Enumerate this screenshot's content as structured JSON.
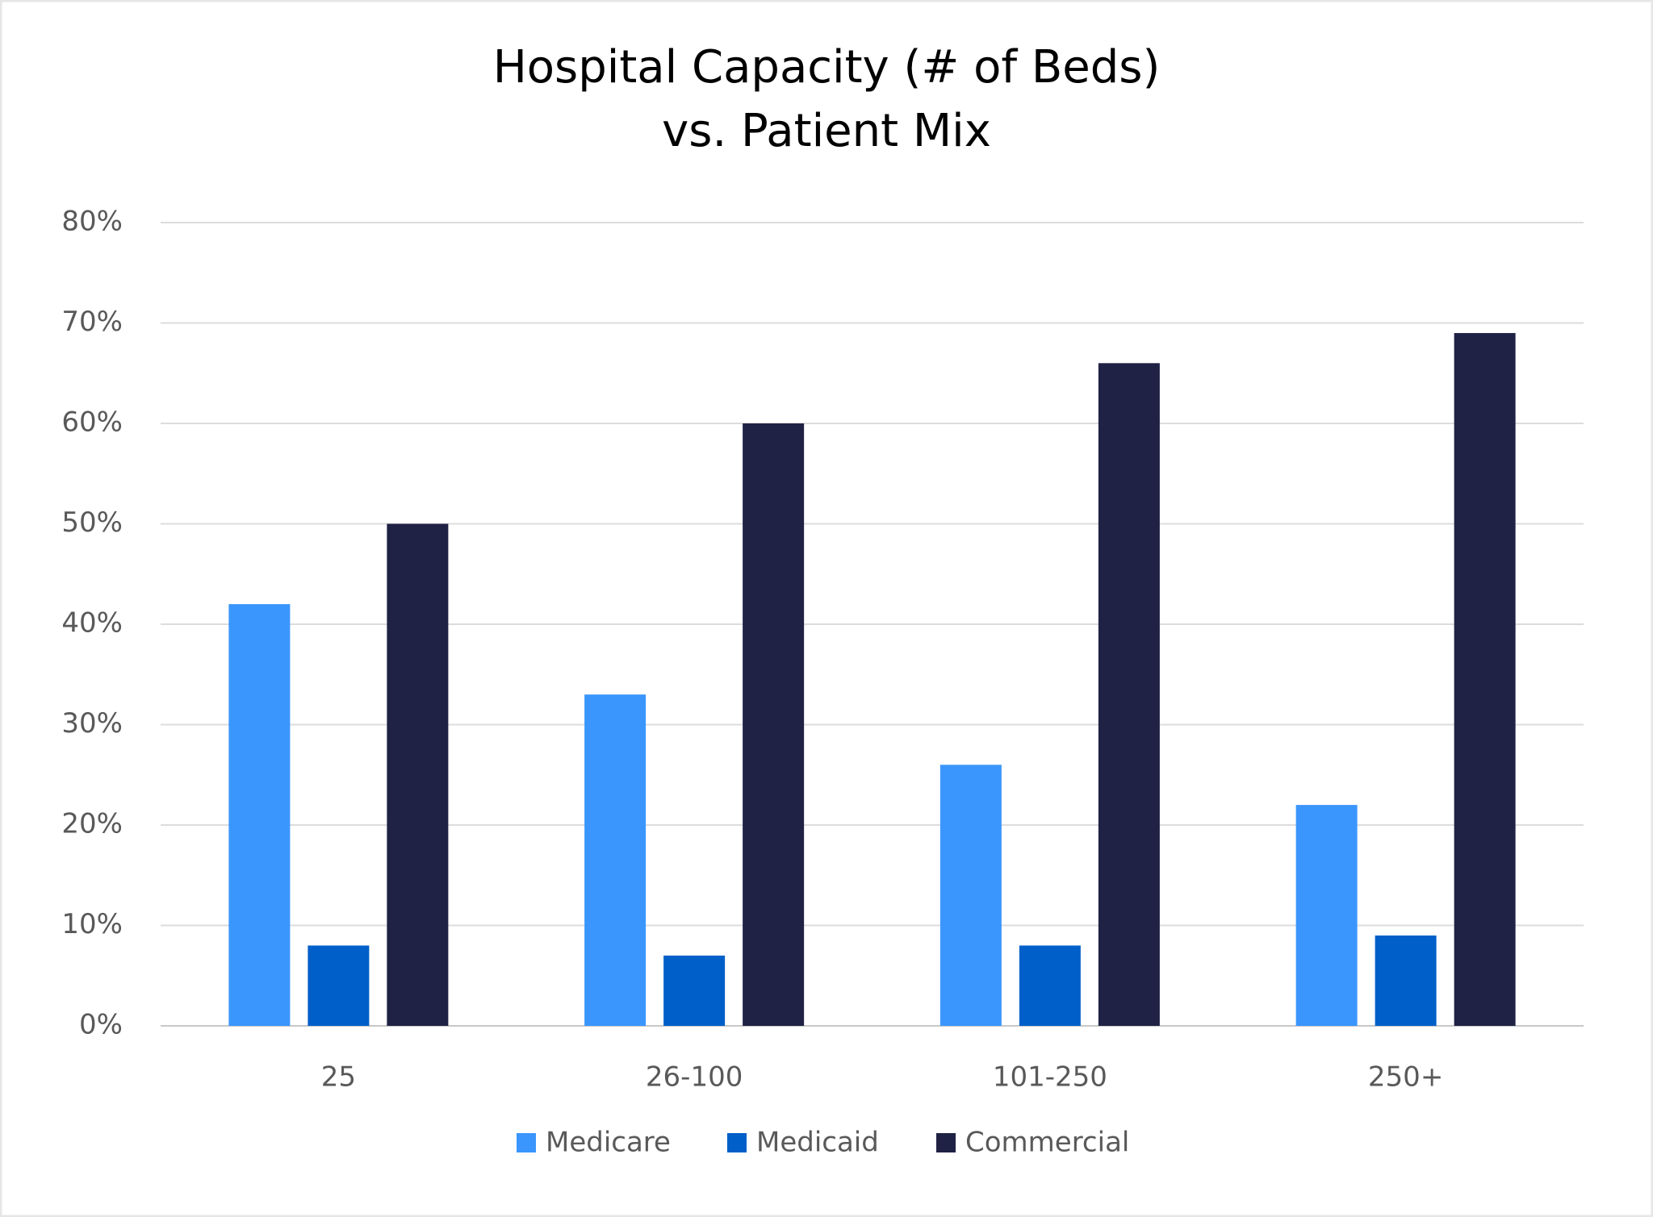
{
  "chart_data": {
    "type": "bar",
    "title": [
      "Hospital Capacity (# of Beds)",
      "vs. Patient Mix"
    ],
    "categories": [
      "25",
      "26-100",
      "101-250",
      "250+"
    ],
    "series": [
      {
        "name": "Medicare",
        "color": "#3a96fd",
        "values": [
          42,
          33,
          26,
          22
        ]
      },
      {
        "name": "Medicaid",
        "color": "#005fc8",
        "values": [
          8,
          7,
          8,
          9
        ]
      },
      {
        "name": "Commercial",
        "color": "#1f2145",
        "values": [
          50,
          60,
          66,
          69
        ]
      }
    ],
    "ylim": [
      0,
      80
    ],
    "yticks": [
      {
        "value": 0,
        "label": "0%"
      },
      {
        "value": 10,
        "label": "10%"
      },
      {
        "value": 20,
        "label": "20%"
      },
      {
        "value": 30,
        "label": "30%"
      },
      {
        "value": 40,
        "label": "40%"
      },
      {
        "value": 50,
        "label": "50%"
      },
      {
        "value": 60,
        "label": "60%"
      },
      {
        "value": 70,
        "label": "70%"
      },
      {
        "value": 80,
        "label": "80%"
      }
    ],
    "grid": true,
    "legend": "bottom"
  }
}
